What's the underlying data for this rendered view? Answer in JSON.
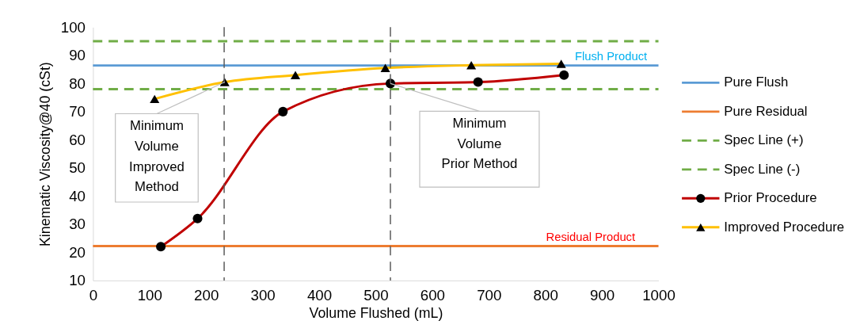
{
  "chart_data": {
    "type": "line",
    "xlabel": "Volume Flushed (mL)",
    "ylabel": "Kinematic Viscosity@40 (cSt)",
    "xlim": [
      0,
      1000
    ],
    "xticks": [
      0,
      100,
      200,
      300,
      400,
      500,
      600,
      700,
      800,
      900,
      1000
    ],
    "ylim": [
      10,
      100
    ],
    "yticks": [
      10,
      20,
      30,
      40,
      50,
      60,
      70,
      80,
      90,
      100
    ],
    "grid": false,
    "legend": "right",
    "series": [
      {
        "name": "Pure Flush",
        "color": "#5b9bd5",
        "x": [
          0,
          1000
        ],
        "values": [
          86.4,
          86.4
        ],
        "line_style": "solid",
        "marker": "none"
      },
      {
        "name": "Pure Residual",
        "color": "#ed7d31",
        "x": [
          0,
          1000
        ],
        "values": [
          22.2,
          22.2
        ],
        "line_style": "solid",
        "marker": "none"
      },
      {
        "name": "Spec Line (+)",
        "color": "#70ad47",
        "x": [
          0,
          1000
        ],
        "values": [
          95,
          95
        ],
        "line_style": "dashed",
        "marker": "none"
      },
      {
        "name": "Spec Line (-)",
        "color": "#70ad47",
        "x": [
          0,
          1000
        ],
        "values": [
          78,
          78
        ],
        "line_style": "dashed",
        "marker": "none"
      },
      {
        "name": "Prior Procedure",
        "color": "#c00000",
        "x": [
          120,
          185,
          336,
          526,
          681,
          833
        ],
        "values": [
          22,
          32,
          70,
          80,
          80.5,
          83
        ],
        "line_style": "solid",
        "marker": "circle"
      },
      {
        "name": "Improved Procedure",
        "color": "#ffc000",
        "x": [
          109,
          233,
          358,
          517,
          669,
          828
        ],
        "values": [
          74.5,
          80.5,
          83,
          85.5,
          86.5,
          87
        ],
        "line_style": "solid",
        "marker": "triangle"
      }
    ],
    "ref_lines": [
      {
        "axis": "x",
        "value": 232,
        "color": "#595959",
        "line_style": "dashed"
      },
      {
        "axis": "x",
        "value": 526,
        "color": "#595959",
        "line_style": "dashed"
      }
    ],
    "annotations": [
      {
        "text": "Minimum\nVolume\nImproved\nMethod",
        "x": 233,
        "y": 80.5
      },
      {
        "text": "Minimum\nVolume\nPrior Method",
        "x": 526,
        "y": 80
      },
      {
        "text": "Flush Product",
        "x": 916,
        "y": 86.4
      },
      {
        "text": "Residual Product",
        "x": 880,
        "y": 22.2
      }
    ]
  }
}
